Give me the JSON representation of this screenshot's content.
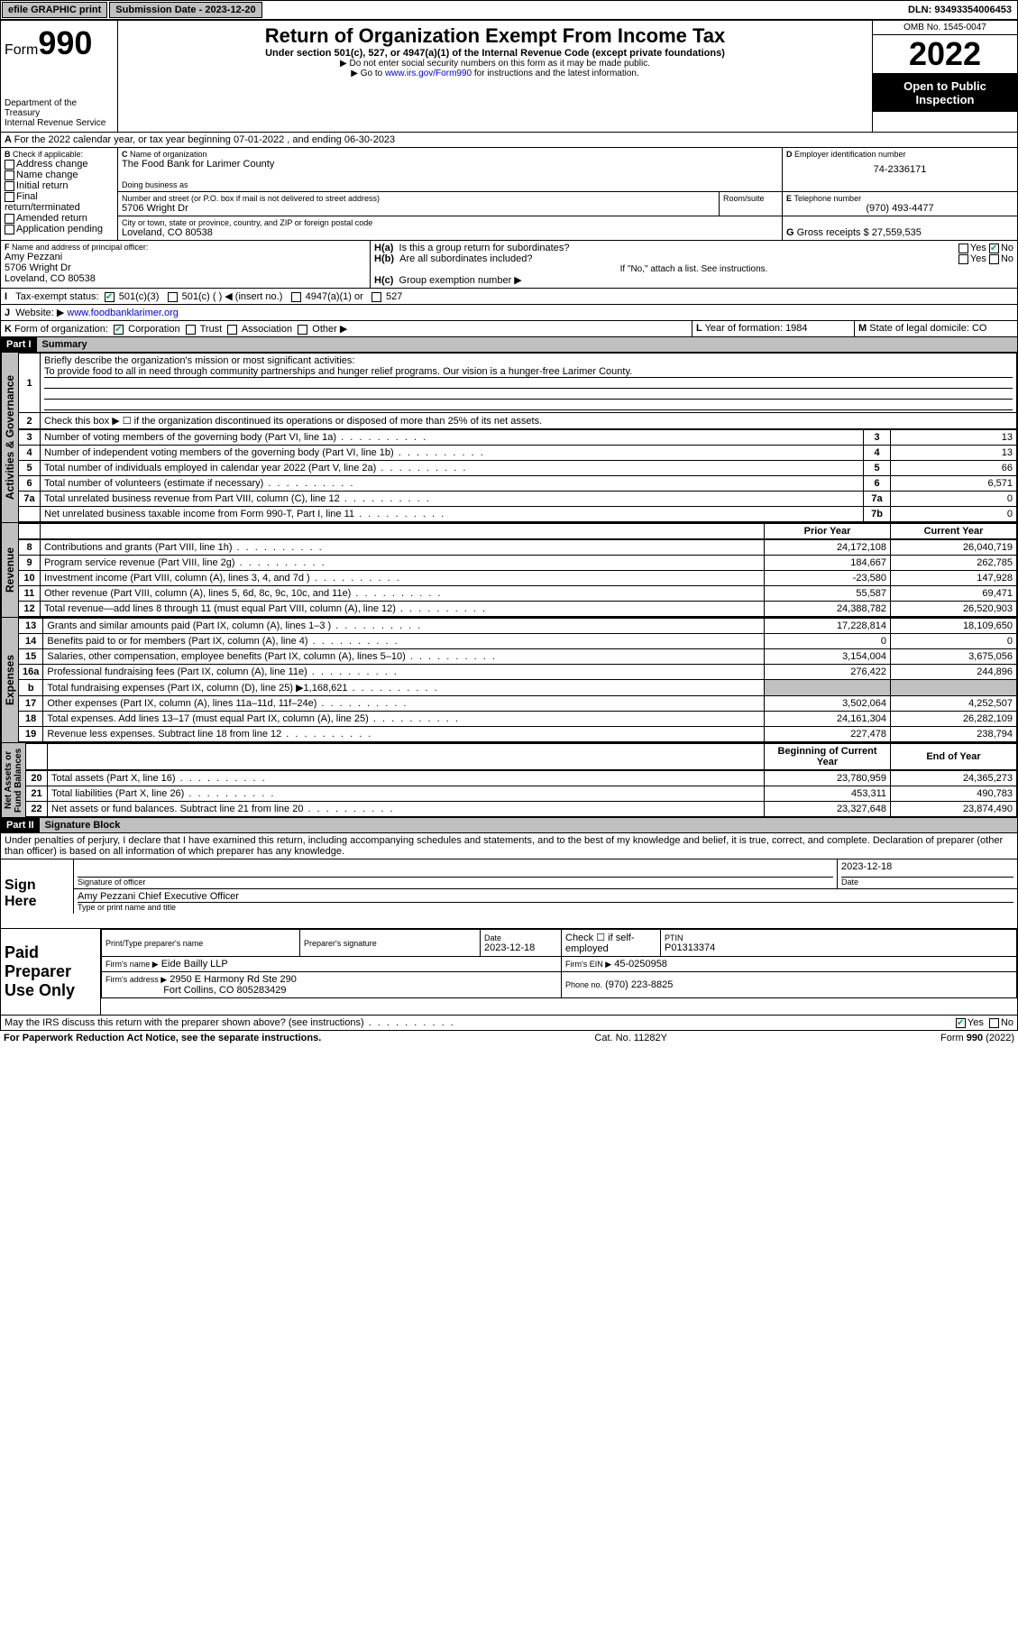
{
  "topbar": {
    "efile": "efile GRAPHIC print",
    "subdate_label": "Submission Date - ",
    "subdate": "2023-12-20",
    "dln_label": "DLN: ",
    "dln": "93493354006453"
  },
  "header": {
    "form": "Form",
    "formno": "990",
    "dept": "Department of the Treasury",
    "irs": "Internal Revenue Service",
    "title": "Return of Organization Exempt From Income Tax",
    "sub": "Under section 501(c), 527, or 4947(a)(1) of the Internal Revenue Code (except private foundations)",
    "note1": "▶ Do not enter social security numbers on this form as it may be made public.",
    "note2": "▶ Go to ",
    "note2link": "www.irs.gov/Form990",
    "note2tail": " for instructions and the latest information.",
    "omb": "OMB No. 1545-0047",
    "year": "2022",
    "inspect": "Open to Public Inspection"
  },
  "periodA": "For the 2022 calendar year, or tax year beginning 07-01-2022    , and ending 06-30-2023",
  "B": {
    "label": "Check if applicable:",
    "items": [
      "Address change",
      "Name change",
      "Initial return",
      "Final return/terminated",
      "Amended return",
      "Application pending"
    ]
  },
  "C": {
    "name_label": "Name of organization",
    "name": "The Food Bank for Larimer County",
    "dba_label": "Doing business as",
    "street_label": "Number and street (or P.O. box if mail is not delivered to street address)",
    "room_label": "Room/suite",
    "street": "5706 Wright Dr",
    "city_label": "City or town, state or province, country, and ZIP or foreign postal code",
    "city": "Loveland, CO  80538"
  },
  "D": {
    "label": "Employer identification number",
    "val": "74-2336171"
  },
  "E": {
    "label": "Telephone number",
    "val": "(970) 493-4477"
  },
  "G": {
    "label": "Gross receipts $",
    "val": "27,559,535"
  },
  "F": {
    "label": "Name and address of principal officer:",
    "name": "Amy Pezzani",
    "addr1": "5706 Wright Dr",
    "addr2": "Loveland, CO  80538"
  },
  "H": {
    "a": "Is this a group return for subordinates?",
    "b": "Are all subordinates included?",
    "note": "If \"No,\" attach a list. See instructions.",
    "c": "Group exemption number ▶"
  },
  "I": {
    "label": "Tax-exempt status:",
    "opts": [
      "501(c)(3)",
      "501(c) (   ) ◀ (insert no.)",
      "4947(a)(1) or",
      "527"
    ]
  },
  "J": {
    "label": "Website: ▶",
    "val": "www.foodbanklarimer.org"
  },
  "K": {
    "label": "Form of organization:",
    "opts": [
      "Corporation",
      "Trust",
      "Association",
      "Other ▶"
    ]
  },
  "L": {
    "label": "Year of formation:",
    "val": "1984"
  },
  "M": {
    "label": "State of legal domicile:",
    "val": "CO"
  },
  "part1": {
    "hdr": "Part I",
    "title": "Summary",
    "mission_label": "Briefly describe the organization's mission or most significant activities:",
    "mission": "To provide food to all in need through community partnerships and hunger relief programs. Our vision is a hunger-free Larimer County.",
    "line2": "Check this box ▶ ☐  if the organization discontinued its operations or disposed of more than 25% of its net assets.",
    "gov_rows": [
      {
        "n": "3",
        "d": "Number of voting members of the governing body (Part VI, line 1a)",
        "box": "3",
        "v": "13"
      },
      {
        "n": "4",
        "d": "Number of independent voting members of the governing body (Part VI, line 1b)",
        "box": "4",
        "v": "13"
      },
      {
        "n": "5",
        "d": "Total number of individuals employed in calendar year 2022 (Part V, line 2a)",
        "box": "5",
        "v": "66"
      },
      {
        "n": "6",
        "d": "Total number of volunteers (estimate if necessary)",
        "box": "6",
        "v": "6,571"
      },
      {
        "n": "7a",
        "d": "Total unrelated business revenue from Part VIII, column (C), line 12",
        "box": "7a",
        "v": "0"
      },
      {
        "n": "",
        "d": "Net unrelated business taxable income from Form 990-T, Part I, line 11",
        "box": "7b",
        "v": "0"
      }
    ],
    "col_prior": "Prior Year",
    "col_current": "Current Year",
    "rev_rows": [
      {
        "n": "8",
        "d": "Contributions and grants (Part VIII, line 1h)",
        "p": "24,172,108",
        "c": "26,040,719"
      },
      {
        "n": "9",
        "d": "Program service revenue (Part VIII, line 2g)",
        "p": "184,667",
        "c": "262,785"
      },
      {
        "n": "10",
        "d": "Investment income (Part VIII, column (A), lines 3, 4, and 7d )",
        "p": "-23,580",
        "c": "147,928"
      },
      {
        "n": "11",
        "d": "Other revenue (Part VIII, column (A), lines 5, 6d, 8c, 9c, 10c, and 11e)",
        "p": "55,587",
        "c": "69,471"
      },
      {
        "n": "12",
        "d": "Total revenue—add lines 8 through 11 (must equal Part VIII, column (A), line 12)",
        "p": "24,388,782",
        "c": "26,520,903"
      }
    ],
    "exp_rows": [
      {
        "n": "13",
        "d": "Grants and similar amounts paid (Part IX, column (A), lines 1–3 )",
        "p": "17,228,814",
        "c": "18,109,650"
      },
      {
        "n": "14",
        "d": "Benefits paid to or for members (Part IX, column (A), line 4)",
        "p": "0",
        "c": "0"
      },
      {
        "n": "15",
        "d": "Salaries, other compensation, employee benefits (Part IX, column (A), lines 5–10)",
        "p": "3,154,004",
        "c": "3,675,056"
      },
      {
        "n": "16a",
        "d": "Professional fundraising fees (Part IX, column (A), line 11e)",
        "p": "276,422",
        "c": "244,896"
      },
      {
        "n": "b",
        "d": "Total fundraising expenses (Part IX, column (D), line 25) ▶1,168,621",
        "p": "",
        "c": "",
        "gray": true
      },
      {
        "n": "17",
        "d": "Other expenses (Part IX, column (A), lines 11a–11d, 11f–24e)",
        "p": "3,502,064",
        "c": "4,252,507"
      },
      {
        "n": "18",
        "d": "Total expenses. Add lines 13–17 (must equal Part IX, column (A), line 25)",
        "p": "24,161,304",
        "c": "26,282,109"
      },
      {
        "n": "19",
        "d": "Revenue less expenses. Subtract line 18 from line 12",
        "p": "227,478",
        "c": "238,794"
      }
    ],
    "col_begin": "Beginning of Current Year",
    "col_end": "End of Year",
    "net_rows": [
      {
        "n": "20",
        "d": "Total assets (Part X, line 16)",
        "p": "23,780,959",
        "c": "24,365,273"
      },
      {
        "n": "21",
        "d": "Total liabilities (Part X, line 26)",
        "p": "453,311",
        "c": "490,783"
      },
      {
        "n": "22",
        "d": "Net assets or fund balances. Subtract line 21 from line 20",
        "p": "23,327,648",
        "c": "23,874,490"
      }
    ]
  },
  "part2": {
    "hdr": "Part II",
    "title": "Signature Block",
    "decl": "Under penalties of perjury, I declare that I have examined this return, including accompanying schedules and statements, and to the best of my knowledge and belief, it is true, correct, and complete. Declaration of preparer (other than officer) is based on all information of which preparer has any knowledge.",
    "sign_here": "Sign Here",
    "sig_officer": "Signature of officer",
    "sig_date": "2023-12-18",
    "date_label": "Date",
    "typed_name": "Amy Pezzani Chief Executive Officer",
    "typed_label": "Type or print name and title",
    "paid": "Paid Preparer Use Only",
    "prep_name_label": "Print/Type preparer's name",
    "prep_sig_label": "Preparer's signature",
    "prep_date": "2023-12-18",
    "check_self": "Check ☐ if self-employed",
    "ptin_label": "PTIN",
    "ptin": "P01313374",
    "firm_name_label": "Firm's name    ▶",
    "firm_name": "Eide Bailly LLP",
    "firm_ein_label": "Firm's EIN ▶",
    "firm_ein": "45-0250958",
    "firm_addr_label": "Firm's address ▶",
    "firm_addr1": "2950 E Harmony Rd Ste 290",
    "firm_addr2": "Fort Collins, CO  805283429",
    "phone_label": "Phone no.",
    "phone": "(970) 223-8825",
    "discuss": "May the IRS discuss this return with the preparer shown above? (see instructions)"
  },
  "footer": {
    "left": "For Paperwork Reduction Act Notice, see the separate instructions.",
    "mid": "Cat. No. 11282Y",
    "right": "Form 990 (2022)"
  }
}
